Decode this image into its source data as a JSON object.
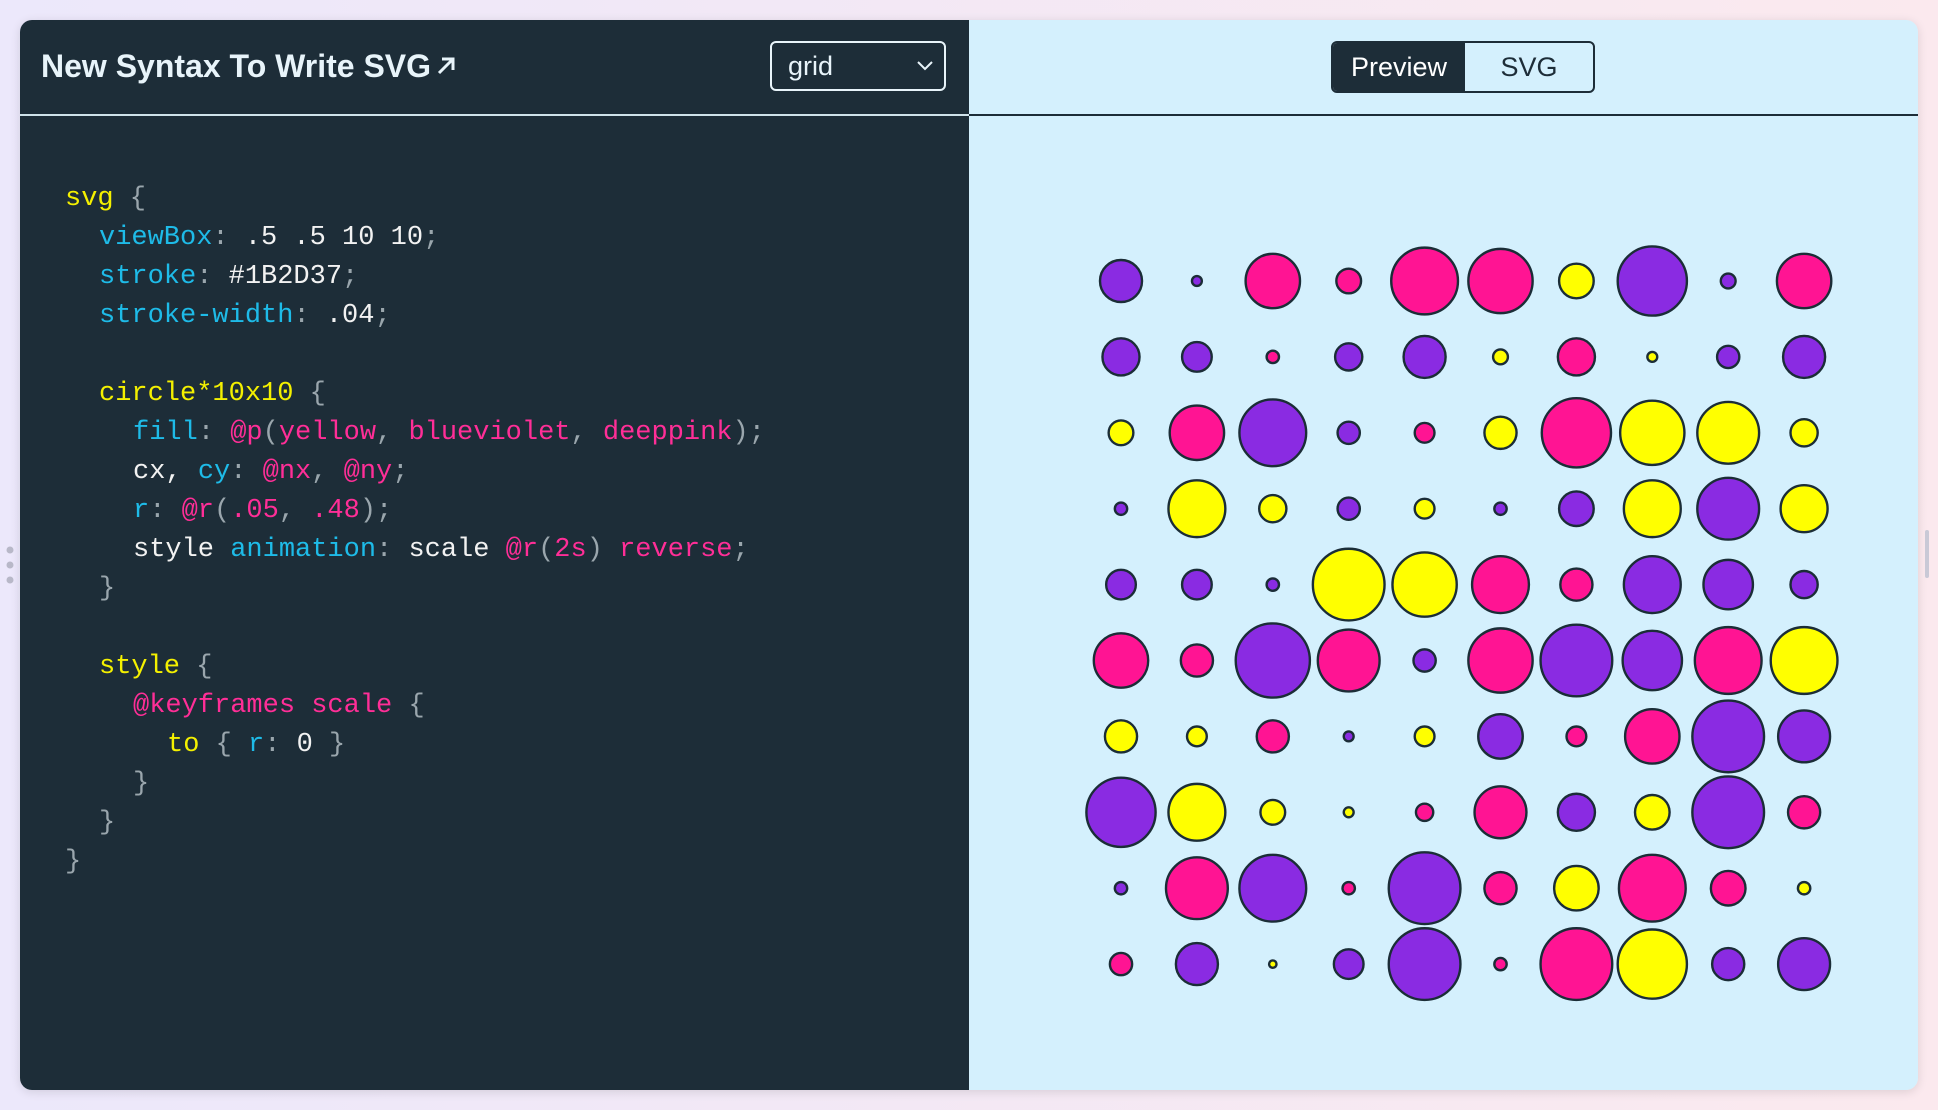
{
  "header": {
    "title": "New Syntax To Write SVG",
    "select": "grid",
    "tabs": [
      "Preview",
      "SVG"
    ]
  },
  "code": {
    "lines": [
      [
        "svg",
        " {"
      ],
      [
        "viewBox",
        ":",
        " .5 .5 10 10",
        ";"
      ],
      [
        "stroke",
        ":",
        " #1B2D37",
        ";"
      ],
      [
        "stroke-width",
        ":",
        " .04",
        ";"
      ],
      [],
      [
        "circle*10x10",
        " {"
      ],
      [
        "fill",
        ": ",
        "@p",
        "(",
        "yellow",
        ", ",
        "blueviolet",
        ", ",
        "deeppink",
        ");"
      ],
      [
        "cx, ",
        "cy",
        ": ",
        "@nx",
        ", ",
        "@ny",
        ";"
      ],
      [
        "r",
        ": ",
        "@r",
        "(",
        ".05",
        ", ",
        ".48",
        ");"
      ],
      [
        "style ",
        "animation",
        ": ",
        "scale ",
        "@r",
        "(",
        "2s",
        ") ",
        "reverse",
        ";"
      ],
      [
        "}"
      ],
      [],
      [
        "style",
        " {"
      ],
      [
        "@keyframes scale",
        " {"
      ],
      [
        "to",
        " { ",
        "r",
        ": ",
        "0",
        " }"
      ],
      [
        "}"
      ],
      [
        "}"
      ],
      [
        "}"
      ]
    ]
  }
}
